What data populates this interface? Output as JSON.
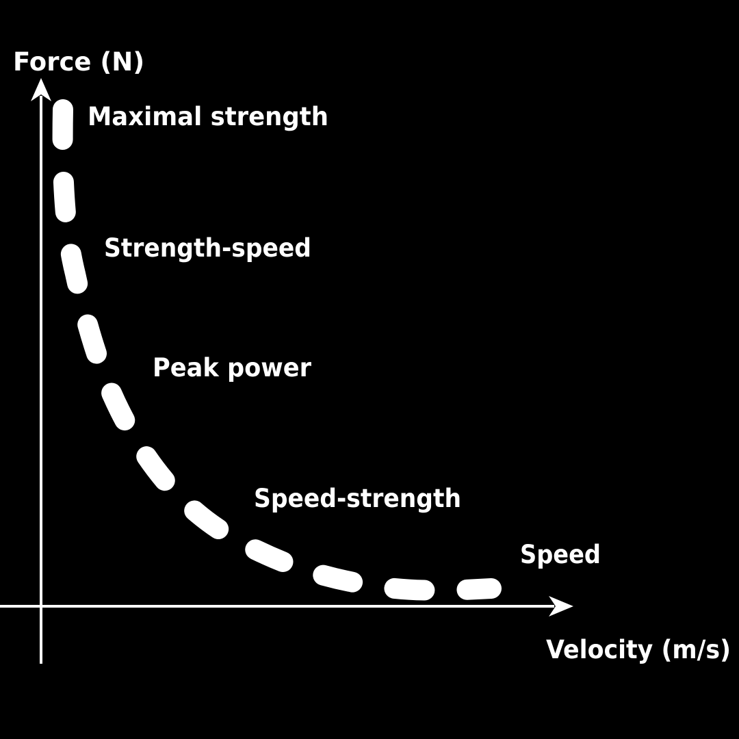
{
  "diagram": {
    "type": "force-velocity curve",
    "y_axis_label": "Force (N)",
    "x_axis_label": "Velocity (m/s)",
    "zones": [
      "Maximal strength",
      "Strength-speed",
      "Peak power",
      "Speed-strength",
      "Speed"
    ],
    "colors": {
      "background": "#000000",
      "axis": "#ffffff",
      "curve": "#ffffff",
      "text": "#ffffff"
    },
    "curve_style": "dashed"
  }
}
